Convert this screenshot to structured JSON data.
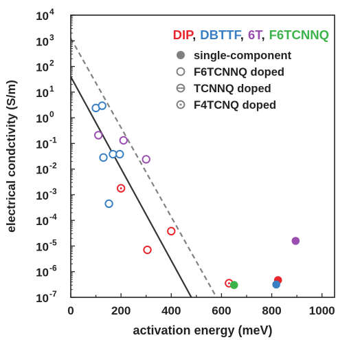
{
  "chart_data": {
    "type": "scatter",
    "xlabel": "activation energy (meV)",
    "ylabel": "electrical condctivity (S/m)",
    "xlim": [
      0,
      1050
    ],
    "ylim_log10": [
      -7,
      4
    ],
    "y_scale": "log",
    "x_ticks": [
      "0",
      "200",
      "400",
      "600",
      "800",
      "1000"
    ],
    "y_ticks": [
      {
        "base": "10",
        "exp": "4"
      },
      {
        "base": "10",
        "exp": "3"
      },
      {
        "base": "10",
        "exp": "2"
      },
      {
        "base": "10",
        "exp": "1"
      },
      {
        "base": "10",
        "exp": "0"
      },
      {
        "base": "10",
        "exp": "-1"
      },
      {
        "base": "10",
        "exp": "-2"
      },
      {
        "base": "10",
        "exp": "-3"
      },
      {
        "base": "10",
        "exp": "-4"
      },
      {
        "base": "10",
        "exp": "-5"
      },
      {
        "base": "10",
        "exp": "-6"
      },
      {
        "base": "10",
        "exp": "-7"
      }
    ],
    "material_legend": [
      {
        "label": "DIP",
        "color": "#e8262e"
      },
      {
        "label": ",",
        "color": "#222222"
      },
      {
        "label": "DBTTF",
        "color": "#3a7fc2"
      },
      {
        "label": ",",
        "color": "#222222"
      },
      {
        "label": "6T",
        "color": "#9a4fb0"
      },
      {
        "label": ",",
        "color": "#222222"
      },
      {
        "label": "F6TCNNQ",
        "color": "#3cb44b"
      }
    ],
    "marker_legend": [
      {
        "label": "single-component",
        "marker": "filled"
      },
      {
        "label": "F6TCNNQ doped",
        "marker": "open"
      },
      {
        "label": "TCNNQ doped",
        "marker": "bar"
      },
      {
        "label": "F4TCNQ doped",
        "marker": "dot"
      }
    ],
    "lines": [
      {
        "style": "solid",
        "color": "#333333",
        "points": [
          [
            0,
            1.6
          ],
          [
            480,
            -7
          ]
        ]
      },
      {
        "style": "dashed",
        "color": "#808080",
        "points": [
          [
            0,
            3.1
          ],
          [
            580,
            -7
          ]
        ]
      }
    ],
    "series": [
      {
        "material": "DBTTF",
        "marker": "open",
        "color": "#3a7fc2",
        "points": [
          [
            100,
            0.38
          ],
          [
            125,
            0.47
          ],
          [
            130,
            -1.55
          ],
          [
            152,
            -3.35
          ],
          [
            168,
            -1.42
          ],
          [
            195,
            -1.42
          ]
        ]
      },
      {
        "material": "6T",
        "marker": "open",
        "color": "#9a4fb0",
        "points": [
          [
            110,
            -0.68
          ],
          [
            210,
            -0.88
          ],
          [
            300,
            -1.62
          ]
        ]
      },
      {
        "material": "DIP",
        "marker": "open",
        "color": "#e8262e",
        "points": [
          [
            305,
            -5.15
          ],
          [
            400,
            -4.42
          ]
        ]
      },
      {
        "material": "DIP",
        "marker": "dot",
        "color": "#e8262e",
        "points": [
          [
            200,
            -2.75
          ],
          [
            630,
            -6.45
          ]
        ]
      },
      {
        "material": "F6TCNNQ",
        "marker": "filled",
        "color": "#3cb44b",
        "points": [
          [
            650,
            -6.52
          ]
        ]
      },
      {
        "material": "DIP",
        "marker": "filled",
        "color": "#e8262e",
        "points": [
          [
            825,
            -6.33
          ]
        ]
      },
      {
        "material": "DBTTF",
        "marker": "filled",
        "color": "#3a7fc2",
        "points": [
          [
            818,
            -6.5
          ]
        ]
      },
      {
        "material": "6T",
        "marker": "filled",
        "color": "#9a4fb0",
        "points": [
          [
            895,
            -4.8
          ]
        ]
      }
    ],
    "colors": {
      "axis": "#222222",
      "legend_marker": "#808080"
    }
  }
}
